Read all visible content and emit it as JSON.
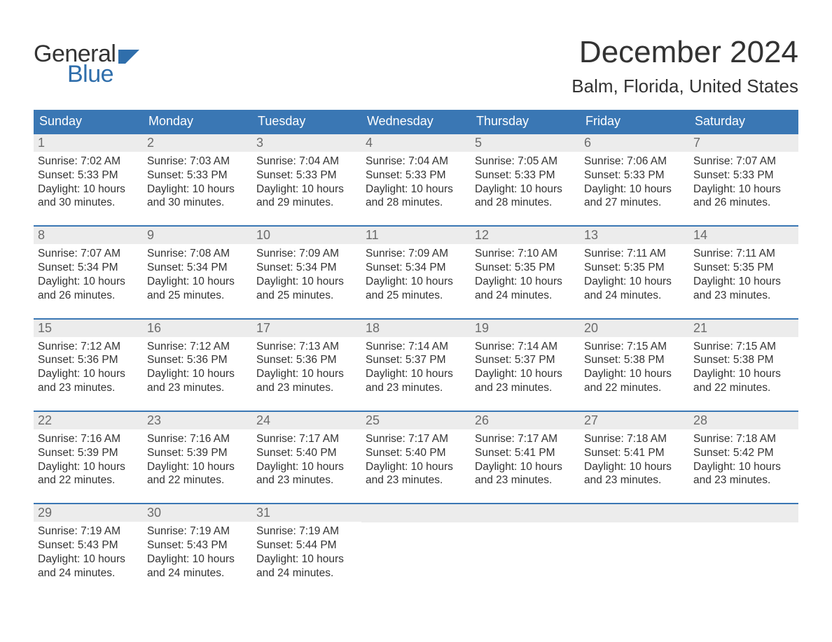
{
  "brand": {
    "word1": "General",
    "word2": "Blue",
    "text_color_dark": "#333333",
    "text_color_blue": "#2f6eab",
    "flag_color": "#2f6eab"
  },
  "title": "December 2024",
  "location": "Balm, Florida, United States",
  "colors": {
    "header_bg": "#3a77b4",
    "header_text": "#ffffff",
    "daynum_bg": "#ececec",
    "daynum_text": "#6b6b6b",
    "body_text": "#333333",
    "week_border": "#3a77b4",
    "background": "#ffffff"
  },
  "typography": {
    "month_title_fontsize": 44,
    "location_fontsize": 26,
    "day_header_fontsize": 18,
    "daynum_fontsize": 18,
    "body_fontsize": 15.5,
    "logo_fontsize": 34
  },
  "day_labels": [
    "Sunday",
    "Monday",
    "Tuesday",
    "Wednesday",
    "Thursday",
    "Friday",
    "Saturday"
  ],
  "weeks": [
    [
      {
        "num": "1",
        "sunrise": "Sunrise: 7:02 AM",
        "sunset": "Sunset: 5:33 PM",
        "daylight1": "Daylight: 10 hours",
        "daylight2": "and 30 minutes."
      },
      {
        "num": "2",
        "sunrise": "Sunrise: 7:03 AM",
        "sunset": "Sunset: 5:33 PM",
        "daylight1": "Daylight: 10 hours",
        "daylight2": "and 30 minutes."
      },
      {
        "num": "3",
        "sunrise": "Sunrise: 7:04 AM",
        "sunset": "Sunset: 5:33 PM",
        "daylight1": "Daylight: 10 hours",
        "daylight2": "and 29 minutes."
      },
      {
        "num": "4",
        "sunrise": "Sunrise: 7:04 AM",
        "sunset": "Sunset: 5:33 PM",
        "daylight1": "Daylight: 10 hours",
        "daylight2": "and 28 minutes."
      },
      {
        "num": "5",
        "sunrise": "Sunrise: 7:05 AM",
        "sunset": "Sunset: 5:33 PM",
        "daylight1": "Daylight: 10 hours",
        "daylight2": "and 28 minutes."
      },
      {
        "num": "6",
        "sunrise": "Sunrise: 7:06 AM",
        "sunset": "Sunset: 5:33 PM",
        "daylight1": "Daylight: 10 hours",
        "daylight2": "and 27 minutes."
      },
      {
        "num": "7",
        "sunrise": "Sunrise: 7:07 AM",
        "sunset": "Sunset: 5:33 PM",
        "daylight1": "Daylight: 10 hours",
        "daylight2": "and 26 minutes."
      }
    ],
    [
      {
        "num": "8",
        "sunrise": "Sunrise: 7:07 AM",
        "sunset": "Sunset: 5:34 PM",
        "daylight1": "Daylight: 10 hours",
        "daylight2": "and 26 minutes."
      },
      {
        "num": "9",
        "sunrise": "Sunrise: 7:08 AM",
        "sunset": "Sunset: 5:34 PM",
        "daylight1": "Daylight: 10 hours",
        "daylight2": "and 25 minutes."
      },
      {
        "num": "10",
        "sunrise": "Sunrise: 7:09 AM",
        "sunset": "Sunset: 5:34 PM",
        "daylight1": "Daylight: 10 hours",
        "daylight2": "and 25 minutes."
      },
      {
        "num": "11",
        "sunrise": "Sunrise: 7:09 AM",
        "sunset": "Sunset: 5:34 PM",
        "daylight1": "Daylight: 10 hours",
        "daylight2": "and 25 minutes."
      },
      {
        "num": "12",
        "sunrise": "Sunrise: 7:10 AM",
        "sunset": "Sunset: 5:35 PM",
        "daylight1": "Daylight: 10 hours",
        "daylight2": "and 24 minutes."
      },
      {
        "num": "13",
        "sunrise": "Sunrise: 7:11 AM",
        "sunset": "Sunset: 5:35 PM",
        "daylight1": "Daylight: 10 hours",
        "daylight2": "and 24 minutes."
      },
      {
        "num": "14",
        "sunrise": "Sunrise: 7:11 AM",
        "sunset": "Sunset: 5:35 PM",
        "daylight1": "Daylight: 10 hours",
        "daylight2": "and 23 minutes."
      }
    ],
    [
      {
        "num": "15",
        "sunrise": "Sunrise: 7:12 AM",
        "sunset": "Sunset: 5:36 PM",
        "daylight1": "Daylight: 10 hours",
        "daylight2": "and 23 minutes."
      },
      {
        "num": "16",
        "sunrise": "Sunrise: 7:12 AM",
        "sunset": "Sunset: 5:36 PM",
        "daylight1": "Daylight: 10 hours",
        "daylight2": "and 23 minutes."
      },
      {
        "num": "17",
        "sunrise": "Sunrise: 7:13 AM",
        "sunset": "Sunset: 5:36 PM",
        "daylight1": "Daylight: 10 hours",
        "daylight2": "and 23 minutes."
      },
      {
        "num": "18",
        "sunrise": "Sunrise: 7:14 AM",
        "sunset": "Sunset: 5:37 PM",
        "daylight1": "Daylight: 10 hours",
        "daylight2": "and 23 minutes."
      },
      {
        "num": "19",
        "sunrise": "Sunrise: 7:14 AM",
        "sunset": "Sunset: 5:37 PM",
        "daylight1": "Daylight: 10 hours",
        "daylight2": "and 23 minutes."
      },
      {
        "num": "20",
        "sunrise": "Sunrise: 7:15 AM",
        "sunset": "Sunset: 5:38 PM",
        "daylight1": "Daylight: 10 hours",
        "daylight2": "and 22 minutes."
      },
      {
        "num": "21",
        "sunrise": "Sunrise: 7:15 AM",
        "sunset": "Sunset: 5:38 PM",
        "daylight1": "Daylight: 10 hours",
        "daylight2": "and 22 minutes."
      }
    ],
    [
      {
        "num": "22",
        "sunrise": "Sunrise: 7:16 AM",
        "sunset": "Sunset: 5:39 PM",
        "daylight1": "Daylight: 10 hours",
        "daylight2": "and 22 minutes."
      },
      {
        "num": "23",
        "sunrise": "Sunrise: 7:16 AM",
        "sunset": "Sunset: 5:39 PM",
        "daylight1": "Daylight: 10 hours",
        "daylight2": "and 22 minutes."
      },
      {
        "num": "24",
        "sunrise": "Sunrise: 7:17 AM",
        "sunset": "Sunset: 5:40 PM",
        "daylight1": "Daylight: 10 hours",
        "daylight2": "and 23 minutes."
      },
      {
        "num": "25",
        "sunrise": "Sunrise: 7:17 AM",
        "sunset": "Sunset: 5:40 PM",
        "daylight1": "Daylight: 10 hours",
        "daylight2": "and 23 minutes."
      },
      {
        "num": "26",
        "sunrise": "Sunrise: 7:17 AM",
        "sunset": "Sunset: 5:41 PM",
        "daylight1": "Daylight: 10 hours",
        "daylight2": "and 23 minutes."
      },
      {
        "num": "27",
        "sunrise": "Sunrise: 7:18 AM",
        "sunset": "Sunset: 5:41 PM",
        "daylight1": "Daylight: 10 hours",
        "daylight2": "and 23 minutes."
      },
      {
        "num": "28",
        "sunrise": "Sunrise: 7:18 AM",
        "sunset": "Sunset: 5:42 PM",
        "daylight1": "Daylight: 10 hours",
        "daylight2": "and 23 minutes."
      }
    ],
    [
      {
        "num": "29",
        "sunrise": "Sunrise: 7:19 AM",
        "sunset": "Sunset: 5:43 PM",
        "daylight1": "Daylight: 10 hours",
        "daylight2": "and 24 minutes."
      },
      {
        "num": "30",
        "sunrise": "Sunrise: 7:19 AM",
        "sunset": "Sunset: 5:43 PM",
        "daylight1": "Daylight: 10 hours",
        "daylight2": "and 24 minutes."
      },
      {
        "num": "31",
        "sunrise": "Sunrise: 7:19 AM",
        "sunset": "Sunset: 5:44 PM",
        "daylight1": "Daylight: 10 hours",
        "daylight2": "and 24 minutes."
      },
      {
        "empty": true
      },
      {
        "empty": true
      },
      {
        "empty": true
      },
      {
        "empty": true
      }
    ]
  ]
}
